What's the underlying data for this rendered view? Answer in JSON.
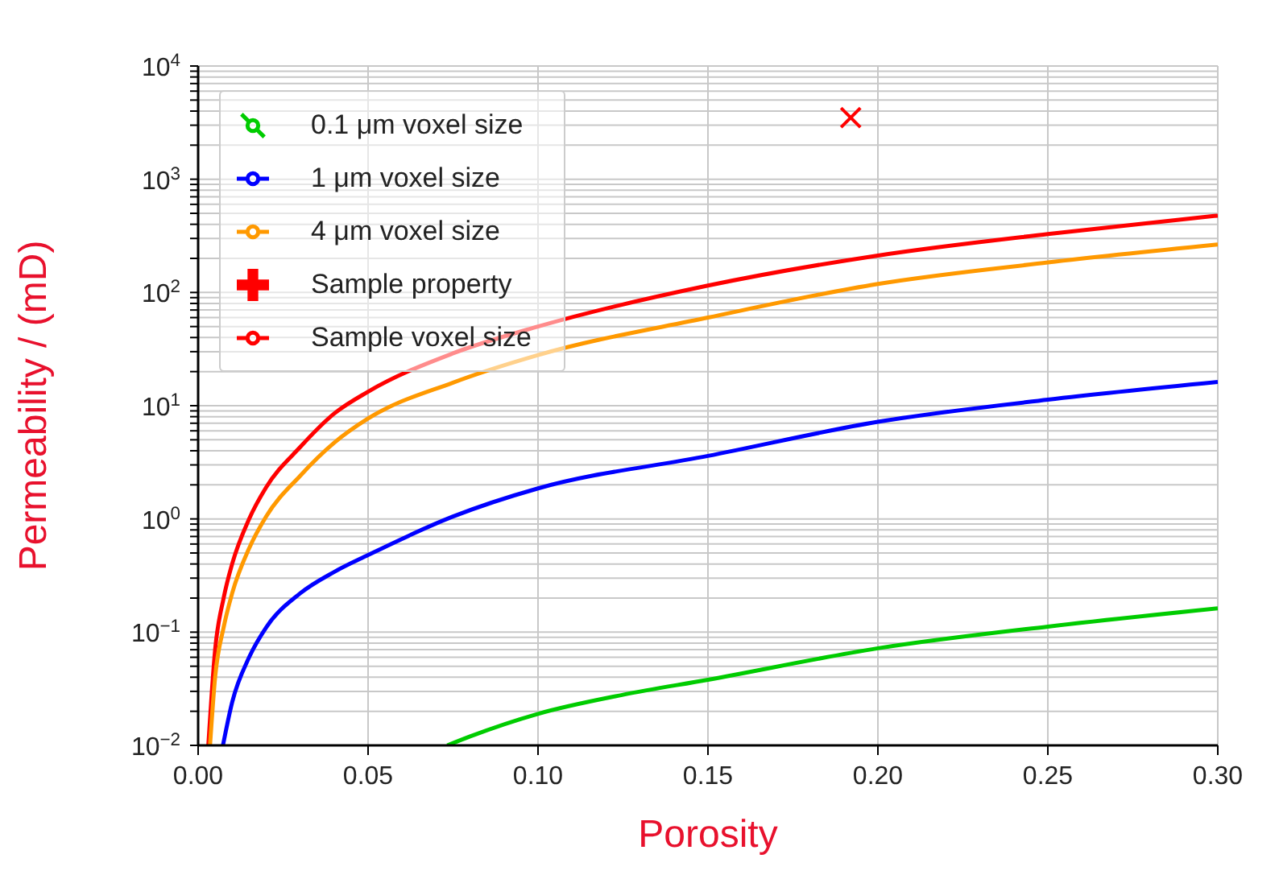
{
  "chart_data": {
    "type": "line",
    "xlabel": "Porosity",
    "ylabel": "Permeability / (mD)",
    "log": "y",
    "grid": true,
    "legend": "top left",
    "xlim": [
      0,
      0.3
    ],
    "xticks": [
      {
        "value": 0,
        "label": "0.00"
      },
      {
        "value": 0.05,
        "label": "0.05"
      },
      {
        "value": 0.1,
        "label": "0.10"
      },
      {
        "value": 0.15,
        "label": "0.15"
      },
      {
        "value": 0.2,
        "label": "0.20"
      },
      {
        "value": 0.25,
        "label": "0.25"
      },
      {
        "value": 0.3,
        "label": "0.30"
      }
    ],
    "ylim": [
      0.01,
      10000
    ],
    "yticks": [
      {
        "value": 0.01,
        "label": "10$^{−2}$"
      },
      {
        "value": 0.02,
        "label": null
      },
      {
        "value": 0.03,
        "label": null
      },
      {
        "value": 0.04,
        "label": null
      },
      {
        "value": 0.05,
        "label": null
      },
      {
        "value": 0.06,
        "label": null
      },
      {
        "value": 0.07,
        "label": null
      },
      {
        "value": 0.08,
        "label": null
      },
      {
        "value": 0.09,
        "label": null
      },
      {
        "value": 0.1,
        "label": "10$^{−1}$"
      },
      {
        "value": 0.2,
        "label": null
      },
      {
        "value": 0.3,
        "label": null
      },
      {
        "value": 0.4,
        "label": null
      },
      {
        "value": 0.5,
        "label": null
      },
      {
        "value": 0.6,
        "label": null
      },
      {
        "value": 0.7,
        "label": null
      },
      {
        "value": 0.8,
        "label": null
      },
      {
        "value": 0.9,
        "label": null
      },
      {
        "value": 1,
        "label": "10$^{0}$"
      },
      {
        "value": 2,
        "label": null
      },
      {
        "value": 3,
        "label": null
      },
      {
        "value": 4,
        "label": null
      },
      {
        "value": 5,
        "label": null
      },
      {
        "value": 6,
        "label": null
      },
      {
        "value": 7,
        "label": null
      },
      {
        "value": 8,
        "label": null
      },
      {
        "value": 9,
        "label": null
      },
      {
        "value": 10,
        "label": "10$^{1}$"
      },
      {
        "value": 20,
        "label": null
      },
      {
        "value": 30,
        "label": null
      },
      {
        "value": 40,
        "label": null
      },
      {
        "value": 50,
        "label": null
      },
      {
        "value": 60,
        "label": null
      },
      {
        "value": 70,
        "label": null
      },
      {
        "value": 80,
        "label": null
      },
      {
        "value": 90,
        "label": null
      },
      {
        "value": 100,
        "label": "10$^{2}$"
      },
      {
        "value": 200,
        "label": null
      },
      {
        "value": 300,
        "label": null
      },
      {
        "value": 400,
        "label": null
      },
      {
        "value": 500,
        "label": null
      },
      {
        "value": 600,
        "label": null
      },
      {
        "value": 700,
        "label": null
      },
      {
        "value": 800,
        "label": null
      },
      {
        "value": 900,
        "label": null
      },
      {
        "value": 1000,
        "label": "10$^{3}$"
      },
      {
        "value": 2000,
        "label": null
      },
      {
        "value": 3000,
        "label": null
      },
      {
        "value": 4000,
        "label": null
      },
      {
        "value": 5000,
        "label": null
      },
      {
        "value": 6000,
        "label": null
      },
      {
        "value": 7000,
        "label": null
      },
      {
        "value": 8000,
        "label": null
      },
      {
        "value": 9000,
        "label": null
      },
      {
        "value": 10000,
        "label": "10$^{4}$"
      }
    ],
    "series": [
      {
        "name": "Sample property",
        "type": "scatter",
        "marker": "cross",
        "color": "#ff0000",
        "x": [
          0.192
        ],
        "values": [
          3500
        ]
      },
      {
        "name": "Sample voxel size",
        "marker": "none",
        "color": "#ff0000",
        "x": [
          0.003,
          0.005,
          0.0075,
          0.01,
          0.015,
          0.02,
          0.03,
          0.04,
          0.05,
          0.075,
          0.1,
          0.15,
          0.2,
          0.25,
          0.3
        ],
        "values": [
          0.01,
          0.07,
          0.2,
          0.4,
          1.0,
          1.9,
          4.3,
          8.5,
          13.3,
          29,
          50,
          115,
          212,
          328,
          477
        ]
      },
      {
        "name": "0.1 μm voxel size",
        "marker": "none",
        "color": "#00cc00",
        "x": [
          0.0733,
          0.08,
          0.1,
          0.125,
          0.15,
          0.2,
          0.25,
          0.3
        ],
        "values": [
          0.01,
          0.012,
          0.019,
          0.028,
          0.038,
          0.072,
          0.112,
          0.162
        ]
      },
      {
        "name": "1 μm voxel size",
        "marker": "none",
        "color": "#0000ff",
        "x": [
          0.0073,
          0.01,
          0.015,
          0.02,
          0.03,
          0.04,
          0.05,
          0.075,
          0.1,
          0.15,
          0.2,
          0.25,
          0.3
        ],
        "values": [
          0.01,
          0.024,
          0.06,
          0.11,
          0.22,
          0.34,
          0.48,
          1.05,
          1.86,
          3.6,
          7.2,
          11.3,
          16.2
        ]
      },
      {
        "name": "4 μm voxel size",
        "marker": "none",
        "color": "#ff9900",
        "x": [
          0.0035,
          0.005,
          0.0075,
          0.01,
          0.015,
          0.02,
          0.03,
          0.04,
          0.05,
          0.075,
          0.1,
          0.15,
          0.2,
          0.25,
          0.3
        ],
        "values": [
          0.01,
          0.04,
          0.11,
          0.22,
          0.55,
          1.05,
          2.4,
          4.7,
          7.7,
          16,
          28,
          60,
          119,
          184,
          265
        ]
      }
    ]
  }
}
